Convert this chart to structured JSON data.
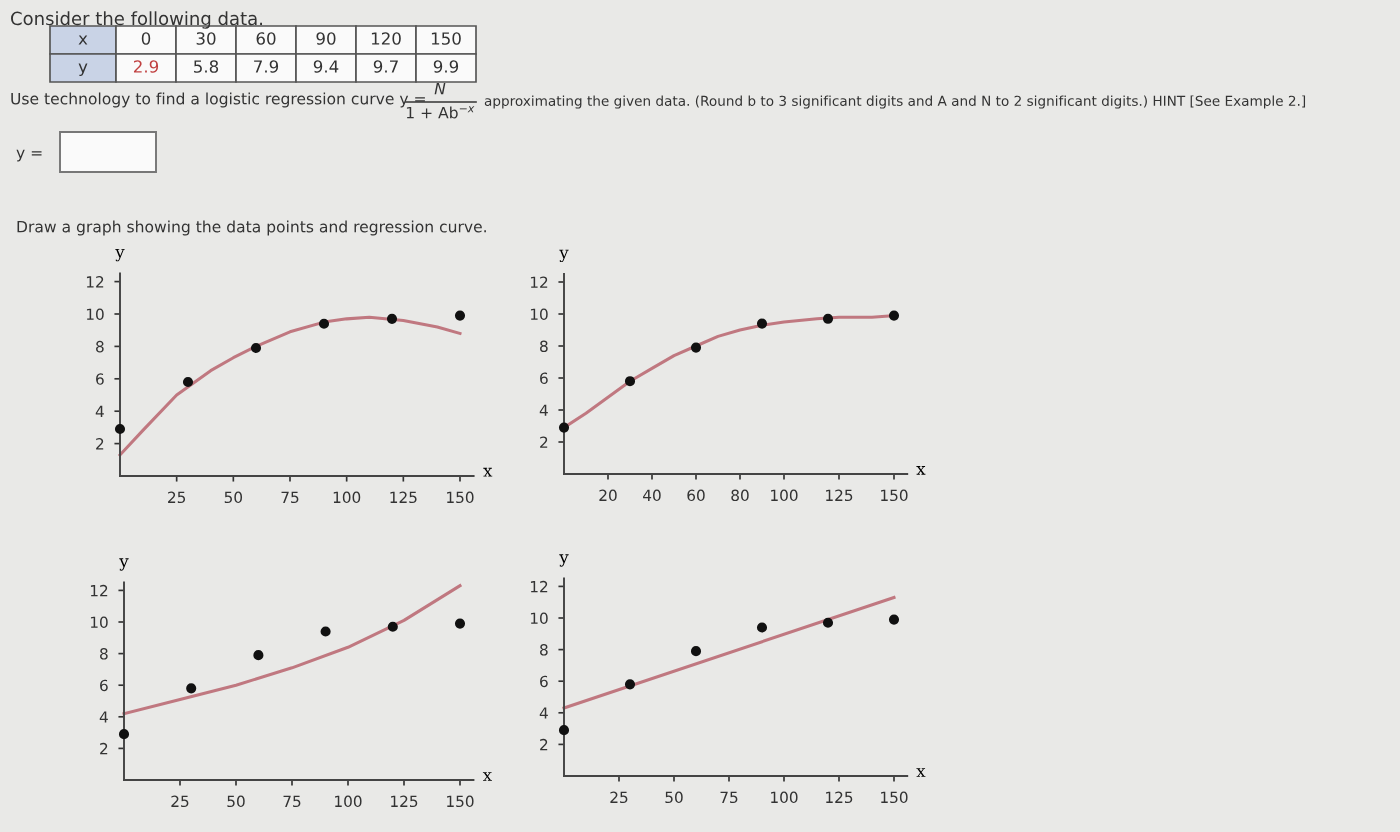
{
  "chart_data": [
    {
      "type": "scatter",
      "xlabel": "x",
      "ylabel": "y",
      "xlim": [
        0,
        156
      ],
      "ylim": [
        0,
        12.5
      ],
      "xticks": [
        25,
        50,
        75,
        100,
        125,
        150
      ],
      "yticks": [
        2,
        4,
        6,
        8,
        10,
        12
      ],
      "grid": false,
      "legend": false,
      "annotations": [
        "Consider the following data.",
        "x",
        "0",
        "30",
        "60",
        "90",
        "120",
        "150",
        "y",
        "2.9",
        "5.8",
        "7.9",
        "9.4",
        "9.7",
        "9.9",
        "Use technology to find a logistic regression curve y =",
        "N",
        "1 + Ab$^{−x}$",
        "approximating the given data. (Round b to 3 significant digits and A and N to 2 significant digits.) HINT [See Example 2.]",
        "y =",
        "Draw a graph showing the data points and regression curve."
      ],
      "series": [
        {
          "type": "line",
          "color": "#c07880",
          "marker": "none",
          "x": [
            0,
            10,
            25,
            40,
            50,
            60,
            75,
            90,
            100,
            110,
            125,
            140,
            150
          ],
          "values": [
            1.3,
            2.8,
            5.0,
            6.5,
            7.3,
            8.0,
            8.9,
            9.5,
            9.7,
            9.8,
            9.6,
            9.2,
            8.8
          ]
        },
        {
          "type": "scatter",
          "color": "#111111",
          "marker": "circle",
          "x": [
            0,
            30,
            60,
            90,
            120,
            150
          ],
          "values": [
            2.9,
            5.8,
            7.9,
            9.4,
            9.7,
            9.9
          ]
        }
      ]
    },
    {
      "type": "scatter",
      "xlabel": "x",
      "ylabel": "y",
      "xlim": [
        0,
        156
      ],
      "ylim": [
        0,
        12.5
      ],
      "xticks": [
        20,
        40,
        60,
        80,
        100,
        125,
        150
      ],
      "yticks": [
        2,
        4,
        6,
        8,
        10,
        12
      ],
      "grid": false,
      "legend": false,
      "series": [
        {
          "type": "line",
          "color": "#c07880",
          "marker": "none",
          "x": [
            0,
            10,
            20,
            30,
            40,
            50,
            60,
            70,
            80,
            90,
            100,
            115,
            125,
            140,
            150
          ],
          "values": [
            2.9,
            3.8,
            4.8,
            5.8,
            6.6,
            7.4,
            8.0,
            8.6,
            9.0,
            9.3,
            9.5,
            9.7,
            9.8,
            9.8,
            9.9
          ]
        },
        {
          "type": "scatter",
          "color": "#111111",
          "marker": "circle",
          "x": [
            0,
            30,
            60,
            90,
            120,
            150
          ],
          "values": [
            2.9,
            5.8,
            7.9,
            9.4,
            9.7,
            9.9
          ]
        }
      ]
    },
    {
      "type": "scatter",
      "xlabel": "x",
      "ylabel": "y",
      "xlim": [
        0,
        156
      ],
      "ylim": [
        0,
        12.5
      ],
      "xticks": [
        25,
        50,
        75,
        100,
        125,
        150
      ],
      "yticks": [
        2,
        4,
        6,
        8,
        10,
        12
      ],
      "grid": false,
      "legend": false,
      "series": [
        {
          "type": "line",
          "color": "#c07880",
          "marker": "none",
          "x": [
            0,
            25,
            50,
            75,
            100,
            125,
            150
          ],
          "values": [
            4.2,
            5.1,
            6.0,
            7.1,
            8.4,
            10.1,
            12.3
          ]
        },
        {
          "type": "scatter",
          "color": "#111111",
          "marker": "circle",
          "x": [
            0,
            30,
            60,
            90,
            120,
            150
          ],
          "values": [
            2.9,
            5.8,
            7.9,
            9.4,
            9.7,
            9.9
          ]
        }
      ]
    },
    {
      "type": "scatter",
      "xlabel": "x",
      "ylabel": "y",
      "xlim": [
        0,
        156
      ],
      "ylim": [
        0,
        12.5
      ],
      "xticks": [
        25,
        50,
        75,
        100,
        125,
        150
      ],
      "yticks": [
        2,
        4,
        6,
        8,
        10,
        12
      ],
      "grid": false,
      "legend": false,
      "series": [
        {
          "type": "line",
          "color": "#c07880",
          "marker": "none",
          "x": [
            0,
            150
          ],
          "values": [
            4.3,
            11.3
          ]
        },
        {
          "type": "scatter",
          "color": "#111111",
          "marker": "circle",
          "x": [
            0,
            30,
            60,
            90,
            120,
            150
          ],
          "values": [
            2.9,
            5.8,
            7.9,
            9.4,
            9.7,
            9.9
          ]
        }
      ]
    }
  ]
}
